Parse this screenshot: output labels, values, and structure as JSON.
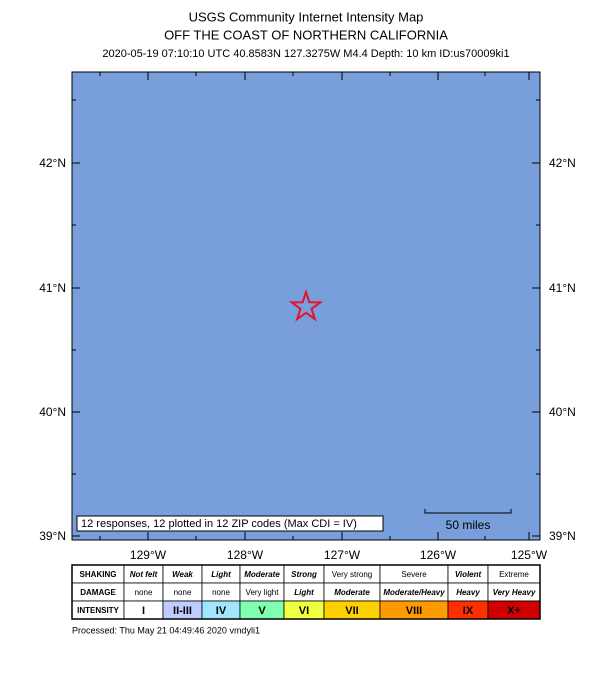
{
  "title": "USGS Community Internet Intensity Map",
  "subtitle": "OFF THE COAST OF NORTHERN CALIFORNIA",
  "event": "2020-05-19 07:10:10 UTC 40.8583N 127.3275W M4.4 Depth: 10 km ID:us70009ki1",
  "map": {
    "lat_labels": [
      "42°N",
      "41°N",
      "40°N",
      "39°N"
    ],
    "lon_labels": [
      "129°W",
      "128°W",
      "127°W",
      "126°W",
      "125°W"
    ],
    "responses": "12 responses, 12 plotted in 12 ZIP codes (Max CDI = IV)",
    "scale": "50 miles"
  },
  "legend": {
    "row_labels": [
      "SHAKING",
      "DAMAGE",
      "INTENSITY"
    ],
    "shaking": [
      "Not felt",
      "Weak",
      "Light",
      "Moderate",
      "Strong",
      "Very strong",
      "Severe",
      "Violent",
      "Extreme"
    ],
    "damage": [
      "none",
      "none",
      "none",
      "Very light",
      "Light",
      "Moderate",
      "Moderate/Heavy",
      "Heavy",
      "Very Heavy"
    ],
    "intensity": [
      "I",
      "II-III",
      "IV",
      "V",
      "VI",
      "VII",
      "VIII",
      "IX",
      "X+"
    ]
  },
  "footer": "Processed: Thu May 21 04:49:46 2020 vmdyli1"
}
